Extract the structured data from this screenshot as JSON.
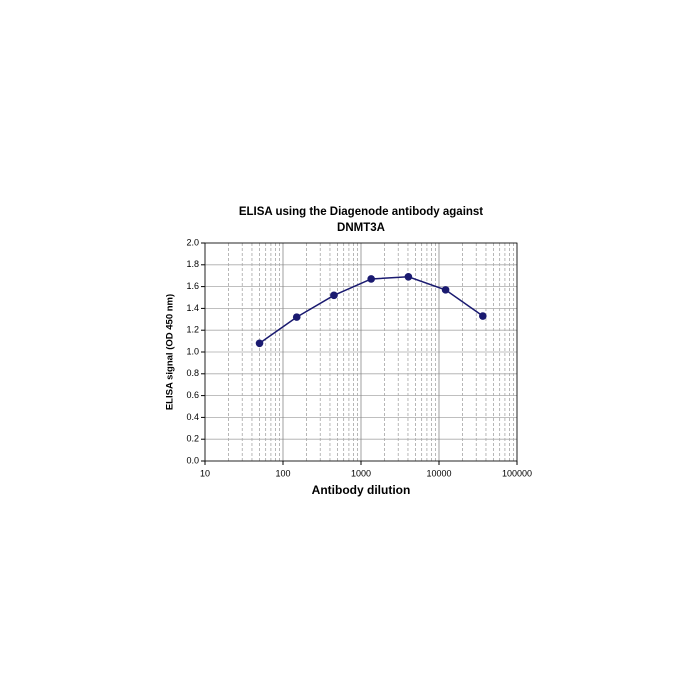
{
  "chart_data": {
    "type": "line",
    "title": [
      "ELISA using the Diagenode antibody against",
      "DNMT3A"
    ],
    "xlabel": "Antibody dilution",
    "ylabel": "ELISA signal (OD 450 nm)",
    "x": [
      50,
      150,
      450,
      1350,
      4050,
      12150,
      36450
    ],
    "series": [
      {
        "color": "#1a1a70",
        "values": [
          1.08,
          1.32,
          1.52,
          1.67,
          1.69,
          1.57,
          1.33
        ]
      }
    ],
    "xscale": "log",
    "xlim": [
      10,
      100000
    ],
    "xticks": [
      10,
      100,
      1000,
      10000,
      100000
    ],
    "ylim": [
      0,
      2.0
    ],
    "yticks": [
      {
        "value": 0,
        "label": "0.0"
      },
      0.2,
      0.4,
      0.6,
      0.8,
      {
        "value": 1.0,
        "label": "1.0"
      },
      1.2,
      1.4,
      1.6,
      1.8,
      {
        "value": 2.0,
        "label": "2.0"
      }
    ],
    "grid": true
  }
}
